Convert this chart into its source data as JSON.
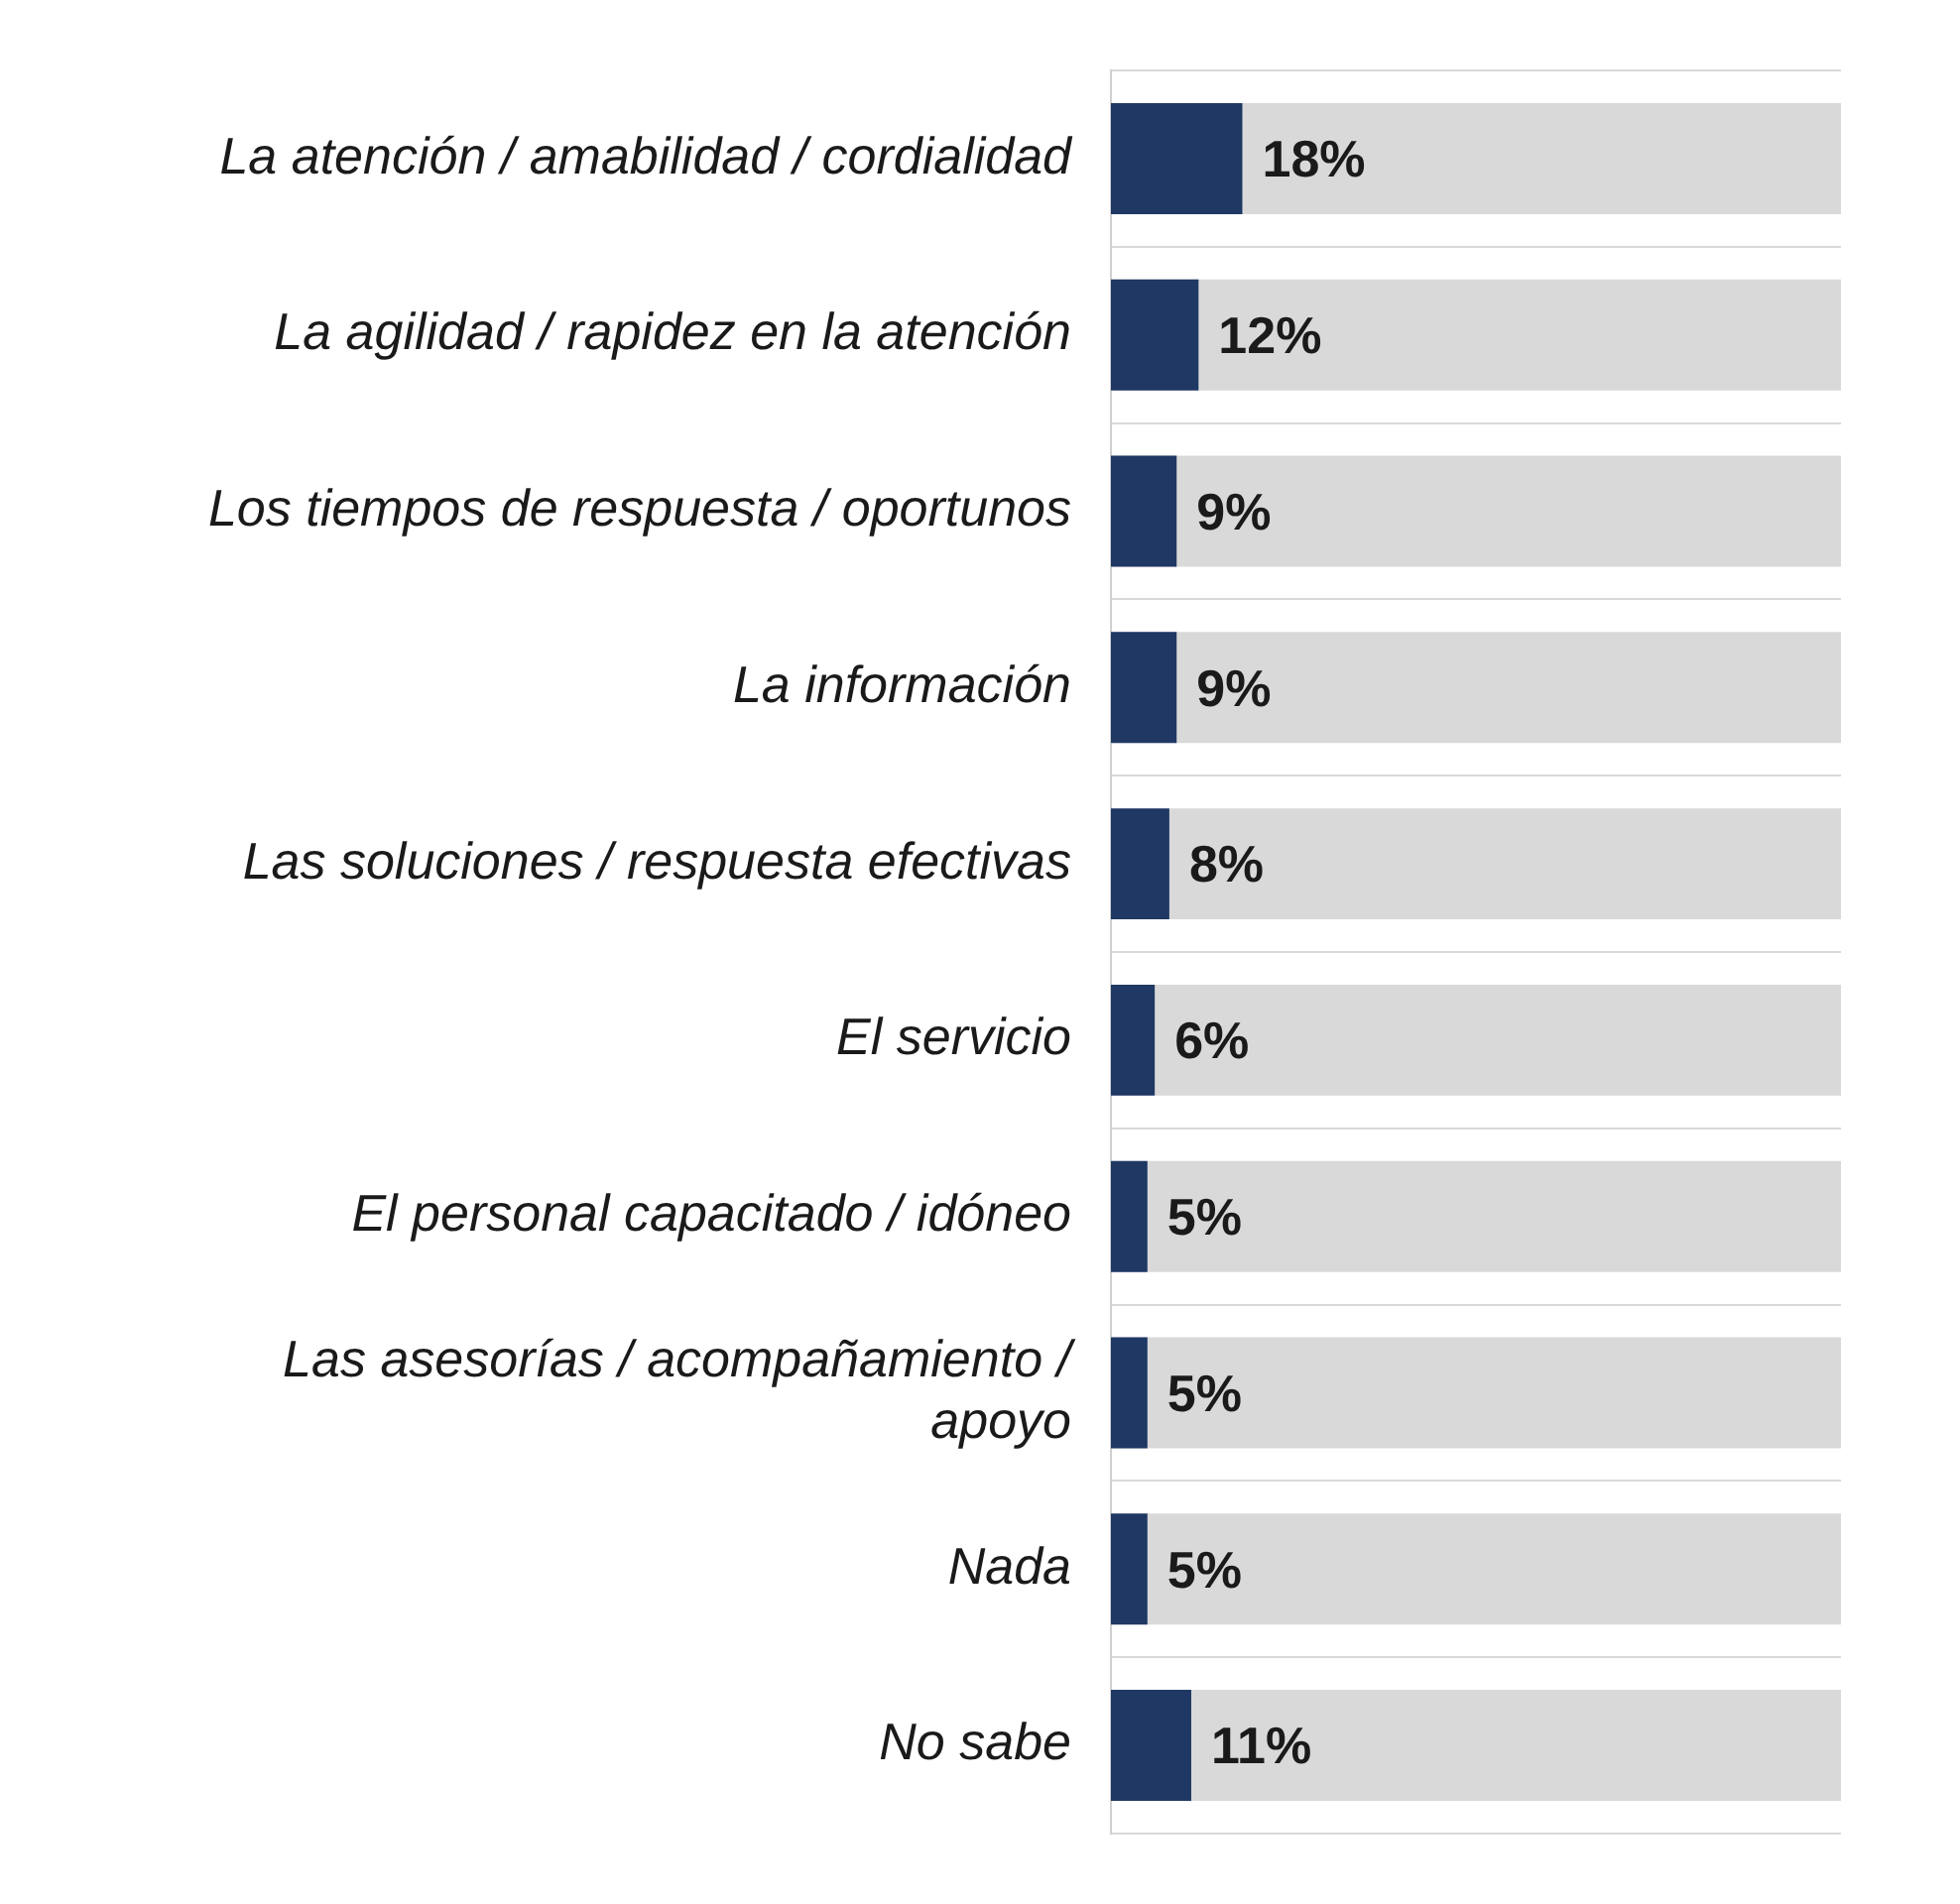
{
  "chart_data": {
    "type": "bar",
    "orientation": "horizontal",
    "categories": [
      "La atención / amabilidad / cordialidad",
      "La agilidad / rapidez en la atención",
      "Los tiempos de respuesta / oportunos",
      "La información",
      "Las soluciones / respuesta efectivas",
      "El servicio",
      "El personal capacitado / idóneo",
      "Las asesorías / acompañamiento / apoyo",
      "Nada",
      "No sabe"
    ],
    "values": [
      18,
      12,
      9,
      9,
      8,
      6,
      5,
      5,
      5,
      11
    ],
    "value_labels": [
      "18%",
      "12%",
      "9%",
      "9%",
      "8%",
      "6%",
      "5%",
      "5%",
      "5%",
      "11%"
    ],
    "color": "#1f3864",
    "xlim": [
      0,
      100
    ],
    "tick_labels": "y",
    "grid": "y",
    "legend": false
  }
}
